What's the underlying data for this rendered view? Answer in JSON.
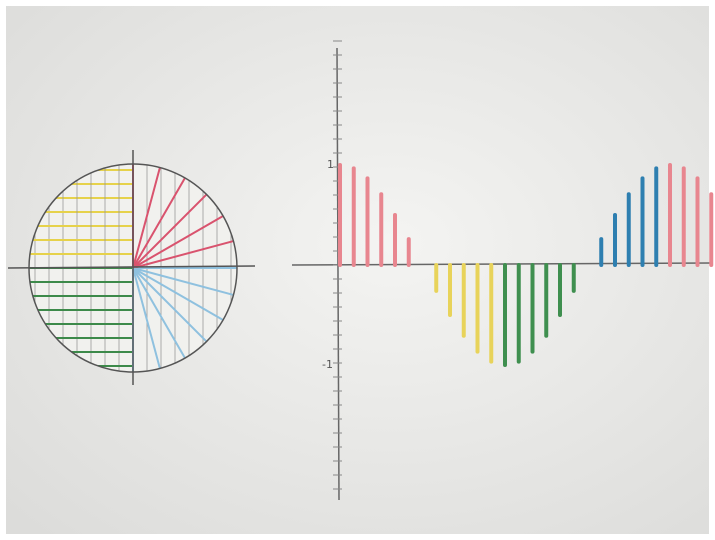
{
  "graph": {
    "y_labels": [
      "1",
      "-1"
    ]
  }
}
